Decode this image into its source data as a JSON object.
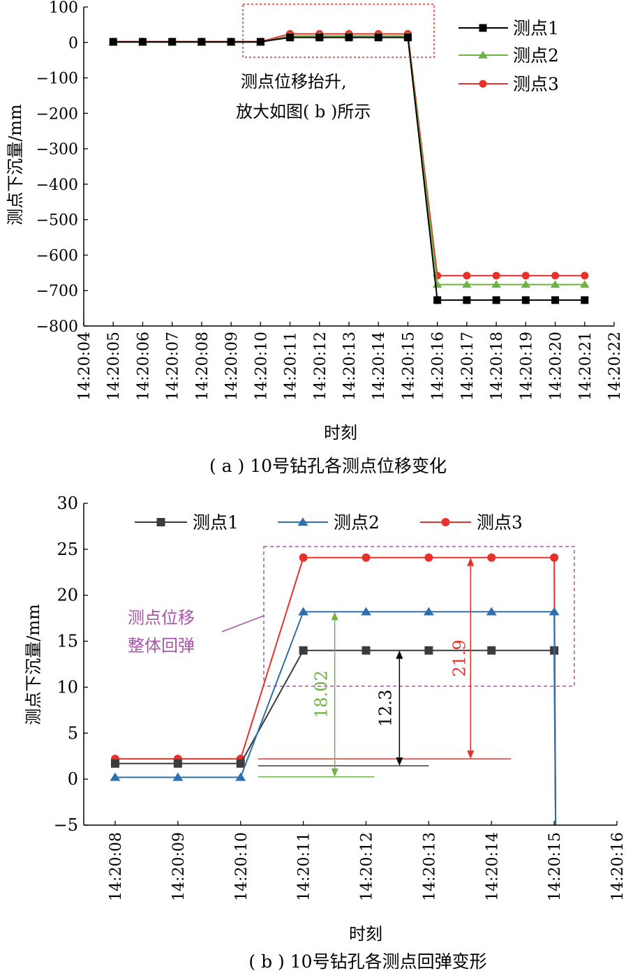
{
  "chart_data": [
    {
      "type": "line",
      "caption": "( a ) 10号钻孔各测点位移变化",
      "xlabel": "时刻",
      "ylabel": "测点下沉量/mm",
      "ylim": [
        -800,
        100
      ],
      "yticks": [
        100,
        0,
        -100,
        -200,
        -300,
        -400,
        -500,
        -600,
        -700,
        -800
      ],
      "ytick_labels": [
        "100",
        "0",
        "−100",
        "−200",
        "−300",
        "−400",
        "−500",
        "−600",
        "−700",
        "−800"
      ],
      "x_tick_labels": [
        "14:20:04",
        "14:20:05",
        "14:20:06",
        "14:20:07",
        "14:20:08",
        "14:20:09",
        "14:20:10",
        "14:20:11",
        "14:20:12",
        "14:20:13",
        "14:20:14",
        "14:20:15",
        "14:20:16",
        "14:20:17",
        "14:20:18",
        "14:20:19",
        "14:20:20",
        "14:20:21",
        "14:20:22"
      ],
      "x_start": 4,
      "x_end": 22,
      "x": [
        "14:20:05",
        "14:20:06",
        "14:20:07",
        "14:20:08",
        "14:20:09",
        "14:20:10",
        "14:20:11",
        "14:20:12",
        "14:20:13",
        "14:20:14",
        "14:20:15",
        "14:20:16",
        "14:20:17",
        "14:20:18",
        "14:20:19",
        "14:20:20",
        "14:20:21"
      ],
      "legend_position": "top-right",
      "series": [
        {
          "name": "测点1",
          "color": "#000000",
          "marker": "square",
          "values": [
            1.7,
            1.7,
            1.7,
            1.7,
            1.7,
            1.7,
            14,
            14,
            14,
            14,
            14,
            -727,
            -727,
            -727,
            -727,
            -727,
            -727
          ]
        },
        {
          "name": "测点2",
          "color": "#6db33f",
          "marker": "triangle",
          "values": [
            0.2,
            0.2,
            0.2,
            0.2,
            0.2,
            0.2,
            18.2,
            18.2,
            18.2,
            18.2,
            18.2,
            -683,
            -683,
            -683,
            -683,
            -683,
            -683
          ]
        },
        {
          "name": "测点3",
          "color": "#e8312a",
          "marker": "circle",
          "values": [
            2.2,
            2.2,
            2.2,
            2.2,
            2.2,
            2.2,
            24.1,
            24.1,
            24.1,
            24.1,
            24.1,
            -658,
            -658,
            -658,
            -658,
            -658,
            -658
          ]
        }
      ],
      "annotation": {
        "line1": "测点位移抬升,",
        "line2": "放大如图( b )所示"
      }
    },
    {
      "type": "line",
      "caption": "( b ) 10号钻孔各测点回弹变形",
      "xlabel": "时刻",
      "ylabel": "测点下沉量/mm",
      "ylim": [
        -5,
        30
      ],
      "yticks": [
        30,
        25,
        20,
        15,
        10,
        5,
        0,
        -5
      ],
      "ytick_labels": [
        "30",
        "25",
        "20",
        "15",
        "10",
        "5",
        "0",
        "−5"
      ],
      "x_tick_labels": [
        "14:20:08",
        "14:20:09",
        "14:20:10",
        "14:20:11",
        "14:20:12",
        "14:20:13",
        "14:20:14",
        "14:20:15",
        "14:20:16"
      ],
      "x_start": 8,
      "x_end": 16,
      "x": [
        "14:20:08",
        "14:20:09",
        "14:20:10",
        "14:20:11",
        "14:20:12",
        "14:20:13",
        "14:20:14",
        "14:20:15"
      ],
      "legend_position": "top",
      "series": [
        {
          "name": "测点1",
          "color": "#3c3c3c",
          "marker": "square",
          "values": [
            1.7,
            1.7,
            1.7,
            14,
            14,
            14,
            14,
            14
          ],
          "drop_to": -5
        },
        {
          "name": "测点2",
          "color": "#2e6fad",
          "marker": "triangle",
          "values": [
            0.2,
            0.2,
            0.2,
            18.2,
            18.2,
            18.2,
            18.2,
            18.2
          ],
          "drop_to": -5
        },
        {
          "name": "测点3",
          "color": "#e8312a",
          "marker": "circle",
          "values": [
            2.2,
            2.2,
            2.2,
            24.1,
            24.1,
            24.1,
            24.1,
            24.1
          ],
          "drop_to": -5
        }
      ],
      "annotation": {
        "line1": "测点位移",
        "line2": "整体回弹"
      },
      "dimensions": [
        {
          "label": "18.02",
          "color": "#6db33f"
        },
        {
          "label": "12.3",
          "color": "#000000"
        },
        {
          "label": "21.9",
          "color": "#e8312a"
        }
      ]
    }
  ]
}
